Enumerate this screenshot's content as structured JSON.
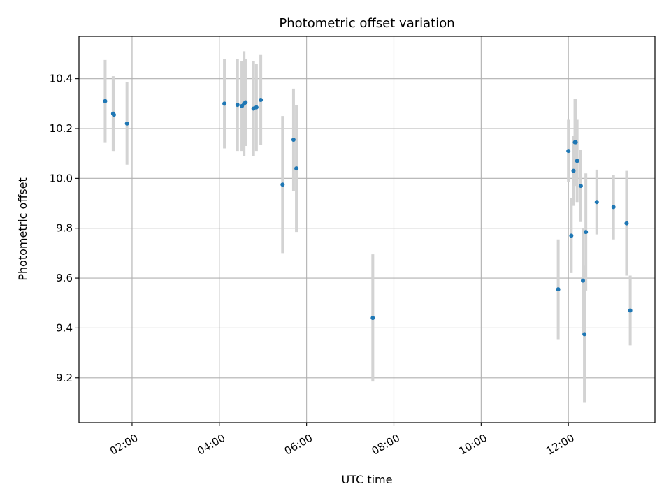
{
  "chart_data": {
    "type": "scatter",
    "title": "Photometric offset variation",
    "xlabel": "UTC time",
    "ylabel": "Photometric offset",
    "x_ticks": [
      "02:00",
      "04:00",
      "06:00",
      "08:00",
      "10:00",
      "12:00"
    ],
    "y_ticks": [
      "9.2",
      "9.4",
      "9.6",
      "9.8",
      "10.0",
      "10.2",
      "10.4"
    ],
    "xlim": [
      "00:47",
      "13:59"
    ],
    "ylim": [
      9.02,
      10.57
    ],
    "grid": true,
    "errorbar_color": "#d3d3d3",
    "marker_color": "#1f77b4",
    "points": [
      {
        "x": "01:23",
        "y": 10.31,
        "err": 0.165
      },
      {
        "x": "01:34",
        "y": 10.26,
        "err": 0.15
      },
      {
        "x": "01:35",
        "y": 10.255,
        "err": 0.145
      },
      {
        "x": "01:53",
        "y": 10.22,
        "err": 0.165
      },
      {
        "x": "04:07",
        "y": 10.3,
        "err": 0.18
      },
      {
        "x": "04:25",
        "y": 10.295,
        "err": 0.185
      },
      {
        "x": "04:31",
        "y": 10.29,
        "err": 0.18
      },
      {
        "x": "04:34",
        "y": 10.3,
        "err": 0.21
      },
      {
        "x": "04:36",
        "y": 10.305,
        "err": 0.175
      },
      {
        "x": "04:47",
        "y": 10.28,
        "err": 0.19
      },
      {
        "x": "04:51",
        "y": 10.285,
        "err": 0.175
      },
      {
        "x": "04:57",
        "y": 10.315,
        "err": 0.18
      },
      {
        "x": "05:27",
        "y": 9.975,
        "err": 0.275
      },
      {
        "x": "05:42",
        "y": 10.155,
        "err": 0.205
      },
      {
        "x": "05:46",
        "y": 10.04,
        "err": 0.255
      },
      {
        "x": "07:31",
        "y": 9.44,
        "err": 0.255
      },
      {
        "x": "11:46",
        "y": 9.555,
        "err": 0.2
      },
      {
        "x": "12:00",
        "y": 10.11,
        "err": 0.125
      },
      {
        "x": "12:04",
        "y": 9.77,
        "err": 0.15
      },
      {
        "x": "12:07",
        "y": 10.03,
        "err": 0.14
      },
      {
        "x": "12:09",
        "y": 10.145,
        "err": 0.175
      },
      {
        "x": "12:10",
        "y": 10.145,
        "err": 0.175
      },
      {
        "x": "12:12",
        "y": 10.07,
        "err": 0.165
      },
      {
        "x": "12:17",
        "y": 9.97,
        "err": 0.145
      },
      {
        "x": "12:20",
        "y": 9.59,
        "err": 0.21
      },
      {
        "x": "12:22",
        "y": 9.375,
        "err": 0.275
      },
      {
        "x": "12:24",
        "y": 9.785,
        "err": 0.235
      },
      {
        "x": "12:39",
        "y": 9.905,
        "err": 0.13
      },
      {
        "x": "13:02",
        "y": 9.885,
        "err": 0.13
      },
      {
        "x": "13:20",
        "y": 9.82,
        "err": 0.21
      },
      {
        "x": "13:25",
        "y": 9.47,
        "err": 0.14
      }
    ]
  }
}
